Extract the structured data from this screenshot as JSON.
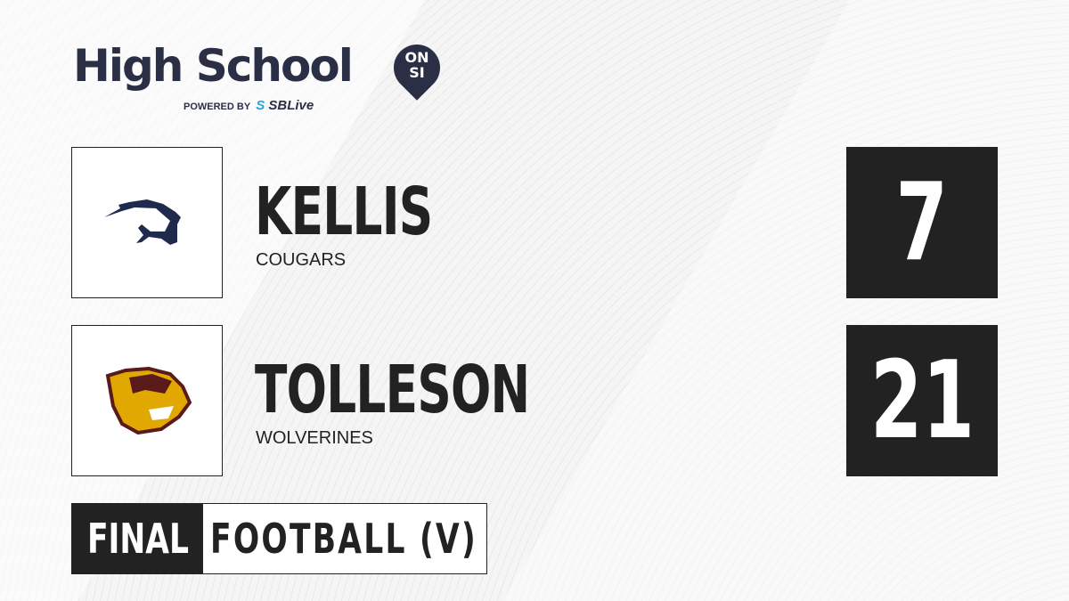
{
  "brand": {
    "title": "High School",
    "badge_top": "ON",
    "badge_bottom": "SI",
    "powered_by": "POWERED BY",
    "partner_prefix": "S",
    "partner": "SBLive"
  },
  "teams": [
    {
      "name": "KELLIS",
      "mascot": "COUGARS",
      "score": "7",
      "logo_color": "#1f2a4d"
    },
    {
      "name": "TOLLESON",
      "mascot": "WOLVERINES",
      "score": "21",
      "logo_color": "#e0a800"
    }
  ],
  "status": "FINAL",
  "sport": "FOOTBALL (V)"
}
